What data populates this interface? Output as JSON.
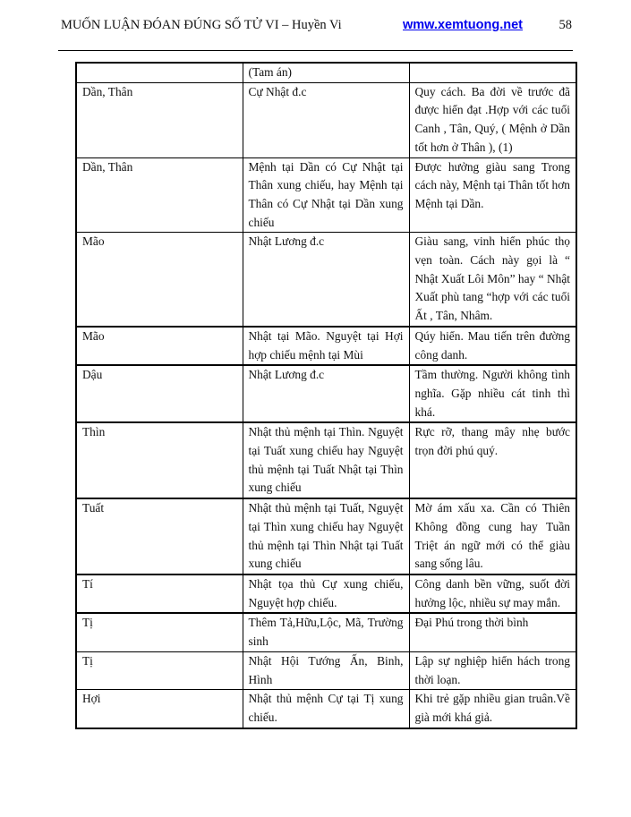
{
  "header": {
    "title": "MUỐN LUẬN ĐÓAN ĐÚNG SỐ TỬ VI – Huyền Vi",
    "site": "wmw.xemtuong.net",
    "page_number": "58"
  },
  "table": {
    "rows": [
      {
        "cung": "",
        "cach": "(Tam án)",
        "luan": ""
      },
      {
        "cung": "Dần, Thân",
        "cach": "Cự Nhật đ.c",
        "luan": "Quy cách. Ba đời về trước đã được hiển đạt .Hợp với các tuổi Canh , Tân, Quý, ( Mệnh ở Dần tốt hơn ở Thân ), (1)"
      },
      {
        "cung": "Dần, Thân",
        "cach": "Mệnh tại Dần có Cự Nhật tại Thân xung chiếu, hay Mệnh tại Thân có Cự Nhật tại Dần xung chiếu",
        "luan": "Được hưởng giàu sang Trong cách này, Mệnh tại Thân tốt hơn Mệnh tại Dần."
      },
      {
        "cung": "Mão",
        "cach": "Nhật Lương đ.c",
        "luan": "Giàu sang, vinh hiển phúc thọ vẹn toàn. Cách này gọi là “ Nhật Xuất Lôi Môn” hay “ Nhật Xuất phù tang “hợp với các tuổi Ất , Tân, Nhâm."
      },
      {
        "cung": "Mão",
        "cach": "Nhật tại Mão. Nguyệt tại Hợi hợp chiếu mệnh tại Mùi",
        "luan": "Qúy hiển. Mau tiến trên đường công danh."
      },
      {
        "cung": "Dậu",
        "cach": "Nhật Lương đ.c",
        "luan": "Tầm thường. Người không tình nghĩa. Gặp nhiều cát tinh thì khá."
      },
      {
        "cung": "Thìn",
        "cach": "Nhật thủ mệnh tại Thìn. Nguyệt tại Tuất xung chiếu hay Nguyệt thủ mệnh tại Tuất Nhật tại Thìn xung chiếu",
        "luan": "Rực rỡ, thang mây nhẹ bước trọn đời phú quý."
      },
      {
        "cung": "Tuất",
        "cach": "Nhật thủ mệnh tại Tuất, Nguyệt tại Thìn xung chiếu hay Nguyệt thủ mệnh tại Thìn Nhật tại Tuất xung chiếu",
        "luan": "Mờ ám xấu xa. Cần có Thiên Không đồng cung hay Tuần Triệt án ngữ mới có thể giàu sang sống lâu."
      },
      {
        "cung": "Tí",
        "cach": "Nhật tọa thủ Cự xung chiếu, Nguyệt hợp chiếu.",
        "luan": "Công danh bền vững, suốt đời hưởng lộc, nhiều sự may mắn."
      },
      {
        "cung": "Tị",
        "cach": "Thêm Tả,Hữu,Lộc, Mã, Trường sinh",
        "luan": "Đại Phú trong thời bình"
      },
      {
        "cung": "Tị",
        "cach": "Nhật Hội Tướng Ấn, Binh, Hình",
        "luan": "Lập sự nghiệp hiển hách trong thời loạn."
      },
      {
        "cung": "Hợi",
        "cach": " Nhật thủ mệnh Cự tại Tị xung chiếu.",
        "luan": "Khi trẻ gặp nhiều gian truân.Về già mới khá giả."
      }
    ]
  }
}
